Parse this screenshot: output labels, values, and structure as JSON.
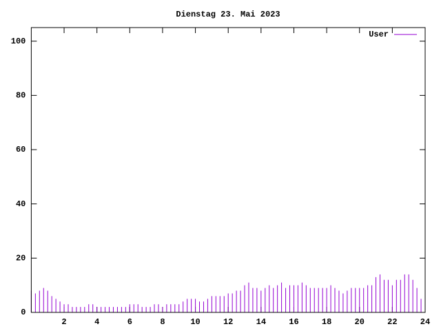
{
  "chart_data": {
    "type": "impulse",
    "title": "Dienstag 23. Mai 2023",
    "series": [
      {
        "name": "User",
        "color": "#9400d3",
        "x": [
          0,
          0.25,
          0.5,
          0.75,
          1,
          1.25,
          1.5,
          1.75,
          2,
          2.25,
          2.5,
          2.75,
          3,
          3.25,
          3.5,
          3.75,
          4,
          4.25,
          4.5,
          4.75,
          5,
          5.25,
          5.5,
          5.75,
          6,
          6.25,
          6.5,
          6.75,
          7,
          7.25,
          7.5,
          7.75,
          8,
          8.25,
          8.5,
          8.75,
          9,
          9.25,
          9.5,
          9.75,
          10,
          10.25,
          10.5,
          10.75,
          11,
          11.25,
          11.5,
          11.75,
          12,
          12.25,
          12.5,
          12.75,
          13,
          13.25,
          13.5,
          13.75,
          14,
          14.25,
          14.5,
          14.75,
          15,
          15.25,
          15.5,
          15.75,
          16,
          16.25,
          16.5,
          16.75,
          17,
          17.25,
          17.5,
          17.75,
          18,
          18.25,
          18.5,
          18.75,
          19,
          19.25,
          19.5,
          19.75,
          20,
          20.25,
          20.5,
          20.75,
          21,
          21.25,
          21.5,
          21.75,
          22,
          22.25,
          22.5,
          22.75,
          23,
          23.25,
          23.5,
          23.75
        ],
        "values": [
          8,
          7,
          8,
          9,
          8,
          6,
          5,
          4,
          3,
          3,
          2,
          2,
          2,
          2,
          3,
          3,
          2,
          2,
          2,
          2,
          2,
          2,
          2,
          2,
          3,
          3,
          3,
          2,
          2,
          2,
          3,
          3,
          2,
          3,
          3,
          3,
          3,
          4,
          5,
          5,
          5,
          4,
          4,
          5,
          6,
          6,
          6,
          6,
          7,
          7,
          8,
          8,
          10,
          11,
          9,
          9,
          8,
          9,
          10,
          9,
          10,
          11,
          9,
          10,
          10,
          10,
          11,
          10,
          9,
          9,
          9,
          9,
          9,
          10,
          9,
          8,
          7,
          8,
          9,
          9,
          9,
          9,
          10,
          10,
          13,
          14,
          12,
          12,
          10,
          12,
          12,
          14,
          14,
          12,
          9,
          5
        ]
      }
    ],
    "xlim": [
      0,
      24
    ],
    "xticks": [
      2,
      4,
      6,
      8,
      10,
      12,
      14,
      16,
      18,
      20,
      22,
      24
    ],
    "ylim": [
      0,
      105
    ],
    "yticks": [
      0,
      20,
      40,
      60,
      80,
      100
    ],
    "legend": "upper right"
  }
}
